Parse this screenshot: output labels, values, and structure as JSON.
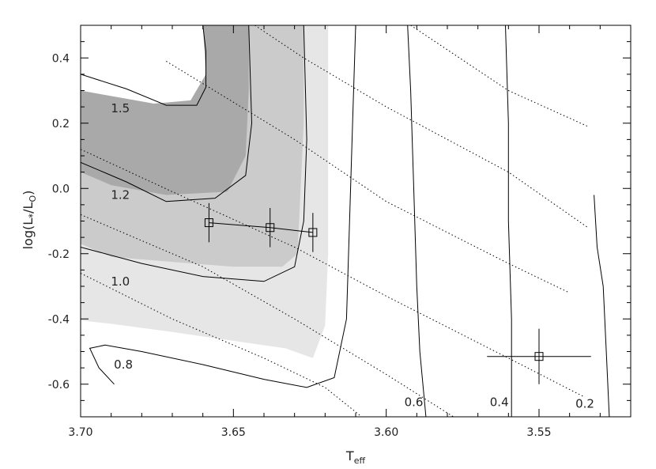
{
  "chart_data": {
    "type": "line",
    "xlabel": "T",
    "xlabel_sub": "eff",
    "ylabel": "log(L",
    "ylabel_star": "*",
    "ylabel_mid": "/L",
    "ylabel_sun": "O",
    "ylabel_end": ")",
    "xlim": [
      3.7,
      3.52
    ],
    "ylim": [
      -0.7,
      0.5
    ],
    "x_ticks": [
      3.7,
      3.65,
      3.6,
      3.55
    ],
    "x_tick_labels": [
      "3.70",
      "3.65",
      "3.60",
      "3.55"
    ],
    "y_ticks": [
      0.4,
      0.2,
      0.0,
      -0.2,
      -0.4,
      -0.6
    ],
    "y_tick_labels": [
      "0.4",
      "0.2",
      "0.0",
      "-0.2",
      "-0.4",
      "-0.6"
    ],
    "confidence_regions": [
      {
        "level": "light",
        "color": "#e6e6e6",
        "points": [
          [
            3.7,
            0.5
          ],
          [
            3.619,
            0.5
          ],
          [
            3.619,
            -0.2
          ],
          [
            3.62,
            -0.42
          ],
          [
            3.624,
            -0.52
          ],
          [
            3.633,
            -0.49
          ],
          [
            3.67,
            -0.44
          ],
          [
            3.69,
            -0.415
          ],
          [
            3.7,
            -0.405
          ]
        ]
      },
      {
        "level": "medium",
        "color": "#cbcbcb",
        "points": [
          [
            3.7,
            0.5
          ],
          [
            3.627,
            0.5
          ],
          [
            3.627,
            0.2
          ],
          [
            3.628,
            0.0
          ],
          [
            3.629,
            -0.2
          ],
          [
            3.634,
            -0.24
          ],
          [
            3.65,
            -0.24
          ],
          [
            3.69,
            -0.21
          ],
          [
            3.7,
            -0.17
          ]
        ]
      },
      {
        "level": "dark",
        "color": "#a9a9a9",
        "points": [
          [
            3.7,
            0.5
          ],
          [
            3.645,
            0.5
          ],
          [
            3.645,
            0.3
          ],
          [
            3.646,
            0.1
          ],
          [
            3.652,
            -0.01
          ],
          [
            3.672,
            -0.02
          ],
          [
            3.69,
            0.01
          ],
          [
            3.7,
            0.05
          ]
        ]
      },
      {
        "level": "hole",
        "color": "#ffffff",
        "points": [
          [
            3.7,
            0.5
          ],
          [
            3.66,
            0.5
          ],
          [
            3.659,
            0.35
          ],
          [
            3.664,
            0.27
          ],
          [
            3.676,
            0.26
          ],
          [
            3.7,
            0.3
          ]
        ]
      }
    ],
    "mass_tracks": [
      {
        "label": "1.5",
        "points": [
          [
            3.7,
            0.35
          ],
          [
            3.685,
            0.305
          ],
          [
            3.672,
            0.255
          ],
          [
            3.662,
            0.255
          ],
          [
            3.659,
            0.31
          ],
          [
            3.659,
            0.42
          ],
          [
            3.66,
            0.5
          ]
        ]
      },
      {
        "label": "1.2",
        "points": [
          [
            3.7,
            0.08
          ],
          [
            3.685,
            0.02
          ],
          [
            3.672,
            -0.04
          ],
          [
            3.656,
            -0.03
          ],
          [
            3.646,
            0.04
          ],
          [
            3.644,
            0.2
          ],
          [
            3.645,
            0.5
          ]
        ]
      },
      {
        "label": "1.0",
        "points": [
          [
            3.7,
            -0.18
          ],
          [
            3.68,
            -0.23
          ],
          [
            3.66,
            -0.27
          ],
          [
            3.64,
            -0.285
          ],
          [
            3.63,
            -0.24
          ],
          [
            3.627,
            -0.1
          ],
          [
            3.626,
            0.15
          ],
          [
            3.627,
            0.5
          ]
        ]
      },
      {
        "label": "0.8",
        "points": [
          [
            3.689,
            -0.6
          ],
          [
            3.694,
            -0.55
          ],
          [
            3.697,
            -0.49
          ],
          [
            3.692,
            -0.48
          ],
          [
            3.68,
            -0.5
          ],
          [
            3.66,
            -0.54
          ],
          [
            3.64,
            -0.585
          ],
          [
            3.626,
            -0.61
          ],
          [
            3.617,
            -0.58
          ],
          [
            3.613,
            -0.4
          ],
          [
            3.612,
            -0.1
          ],
          [
            3.611,
            0.2
          ],
          [
            3.61,
            0.5
          ]
        ]
      },
      {
        "label": "0.6",
        "points": [
          [
            3.587,
            -0.7
          ],
          [
            3.589,
            -0.5
          ],
          [
            3.59,
            -0.3
          ],
          [
            3.591,
            0.0
          ],
          [
            3.592,
            0.3
          ],
          [
            3.593,
            0.5
          ]
        ]
      },
      {
        "label": "0.4",
        "points": [
          [
            3.559,
            -0.7
          ],
          [
            3.559,
            -0.4
          ],
          [
            3.56,
            -0.1
          ],
          [
            3.56,
            0.2
          ],
          [
            3.561,
            0.5
          ]
        ]
      },
      {
        "label": "0.2",
        "points": [
          [
            3.527,
            -0.7
          ],
          [
            3.528,
            -0.5
          ],
          [
            3.529,
            -0.3
          ],
          [
            3.531,
            -0.18
          ],
          [
            3.532,
            -0.02
          ]
        ]
      }
    ],
    "isochrones": [
      [
        [
          3.643,
          0.5
        ],
        [
          3.627,
          0.4
        ],
        [
          3.6,
          0.25
        ],
        [
          3.56,
          0.05
        ],
        [
          3.534,
          -0.12
        ]
      ],
      [
        [
          3.592,
          0.5
        ],
        [
          3.56,
          0.3
        ],
        [
          3.534,
          0.19
        ]
      ],
      [
        [
          3.672,
          0.39
        ],
        [
          3.63,
          0.15
        ],
        [
          3.6,
          -0.04
        ],
        [
          3.56,
          -0.23
        ],
        [
          3.54,
          -0.32
        ]
      ],
      [
        [
          3.7,
          0.12
        ],
        [
          3.67,
          -0.01
        ],
        [
          3.63,
          -0.18
        ],
        [
          3.6,
          -0.33
        ],
        [
          3.56,
          -0.52
        ],
        [
          3.535,
          -0.64
        ]
      ],
      [
        [
          3.7,
          -0.08
        ],
        [
          3.66,
          -0.24
        ],
        [
          3.63,
          -0.4
        ],
        [
          3.6,
          -0.57
        ],
        [
          3.578,
          -0.7
        ]
      ],
      [
        [
          3.7,
          -0.26
        ],
        [
          3.67,
          -0.4
        ],
        [
          3.64,
          -0.52
        ],
        [
          3.62,
          -0.61
        ],
        [
          3.608,
          -0.7
        ]
      ]
    ],
    "stars": [
      {
        "x": 3.658,
        "y": -0.105,
        "yerr": 0.06,
        "xerr": 0.0
      },
      {
        "x": 3.638,
        "y": -0.12,
        "yerr": 0.06,
        "xerr": 0.0
      },
      {
        "x": 3.624,
        "y": -0.135,
        "yerr": 0.06,
        "xerr": 0.0
      },
      {
        "x": 3.55,
        "y": -0.515,
        "yerr": 0.085,
        "xerr": 0.017
      }
    ],
    "connected_stars": [
      0,
      1,
      2
    ]
  }
}
